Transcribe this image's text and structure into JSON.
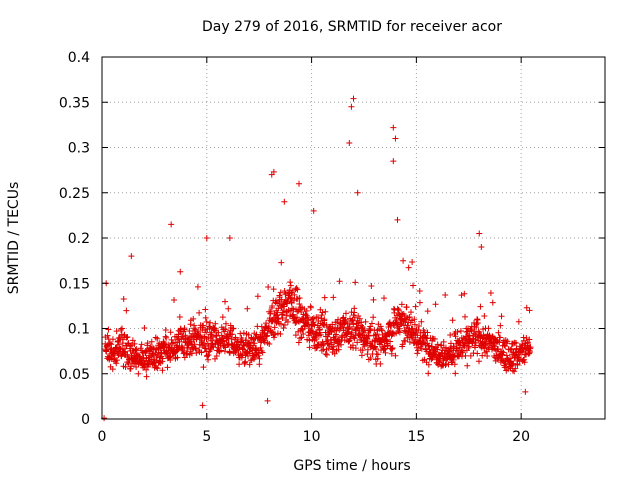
{
  "chart_data": {
    "type": "scatter",
    "title": "Day 279 of 2016, SRMTID for receiver acor",
    "xlabel": "GPS time / hours",
    "ylabel": "SRMTID / TECUs",
    "xlim": [
      0,
      24
    ],
    "ylim": [
      0,
      0.4
    ],
    "xticks": [
      0,
      5,
      10,
      15,
      20
    ],
    "yticks": [
      0,
      0.05,
      0.1,
      0.15,
      0.2,
      0.25,
      0.3,
      0.35,
      0.4
    ],
    "xtick_labels": [
      "0",
      "5",
      "10",
      "15",
      "20"
    ],
    "ytick_labels": [
      "0",
      "0.05",
      "0.1",
      "0.15",
      "0.2",
      "0.25",
      "0.3",
      "0.35",
      "0.4"
    ],
    "grid": true,
    "marker": "plus",
    "color": "#e00000",
    "series": [
      {
        "name": "SRMTID",
        "envelope_x": [
          0.0,
          0.5,
          1.0,
          1.5,
          2.0,
          2.5,
          3.0,
          3.5,
          4.0,
          4.5,
          5.0,
          5.5,
          6.0,
          6.5,
          7.0,
          7.5,
          8.0,
          8.5,
          9.0,
          9.5,
          10.0,
          10.5,
          11.0,
          11.5,
          12.0,
          12.5,
          13.0,
          13.5,
          14.0,
          14.5,
          15.0,
          15.5,
          16.0,
          16.5,
          17.0,
          17.5,
          18.0,
          18.5,
          19.0,
          19.5,
          20.0,
          20.4
        ],
        "envelope_mean": [
          0.08,
          0.075,
          0.08,
          0.07,
          0.065,
          0.07,
          0.075,
          0.08,
          0.085,
          0.09,
          0.09,
          0.085,
          0.09,
          0.08,
          0.075,
          0.08,
          0.1,
          0.12,
          0.13,
          0.11,
          0.1,
          0.095,
          0.09,
          0.095,
          0.1,
          0.09,
          0.085,
          0.09,
          0.1,
          0.11,
          0.09,
          0.08,
          0.075,
          0.07,
          0.08,
          0.085,
          0.09,
          0.085,
          0.075,
          0.07,
          0.072,
          0.08
        ],
        "envelope_spread": [
          0.03,
          0.03,
          0.035,
          0.03,
          0.03,
          0.03,
          0.03,
          0.035,
          0.035,
          0.04,
          0.04,
          0.035,
          0.035,
          0.03,
          0.03,
          0.035,
          0.045,
          0.05,
          0.05,
          0.045,
          0.04,
          0.04,
          0.035,
          0.04,
          0.045,
          0.04,
          0.035,
          0.04,
          0.045,
          0.045,
          0.04,
          0.035,
          0.03,
          0.03,
          0.035,
          0.035,
          0.04,
          0.035,
          0.03,
          0.03,
          0.03,
          0.03
        ],
        "peaks": [
          {
            "x": 0.1,
            "y": 0.001
          },
          {
            "x": 0.2,
            "y": 0.15
          },
          {
            "x": 1.4,
            "y": 0.18
          },
          {
            "x": 3.3,
            "y": 0.215
          },
          {
            "x": 4.8,
            "y": 0.015
          },
          {
            "x": 5.0,
            "y": 0.2
          },
          {
            "x": 6.1,
            "y": 0.2
          },
          {
            "x": 7.9,
            "y": 0.02
          },
          {
            "x": 8.1,
            "y": 0.27
          },
          {
            "x": 8.2,
            "y": 0.273
          },
          {
            "x": 8.7,
            "y": 0.24
          },
          {
            "x": 9.4,
            "y": 0.26
          },
          {
            "x": 10.1,
            "y": 0.23
          },
          {
            "x": 11.8,
            "y": 0.305
          },
          {
            "x": 11.9,
            "y": 0.345
          },
          {
            "x": 12.0,
            "y": 0.354
          },
          {
            "x": 12.2,
            "y": 0.25
          },
          {
            "x": 13.9,
            "y": 0.322
          },
          {
            "x": 14.0,
            "y": 0.31
          },
          {
            "x": 13.9,
            "y": 0.285
          },
          {
            "x": 14.1,
            "y": 0.22
          },
          {
            "x": 18.0,
            "y": 0.205
          },
          {
            "x": 18.1,
            "y": 0.19
          },
          {
            "x": 20.4,
            "y": 0.12
          },
          {
            "x": 20.2,
            "y": 0.03
          }
        ],
        "sampling_interval_hours": 0.012,
        "end_hour": 20.45
      }
    ]
  }
}
